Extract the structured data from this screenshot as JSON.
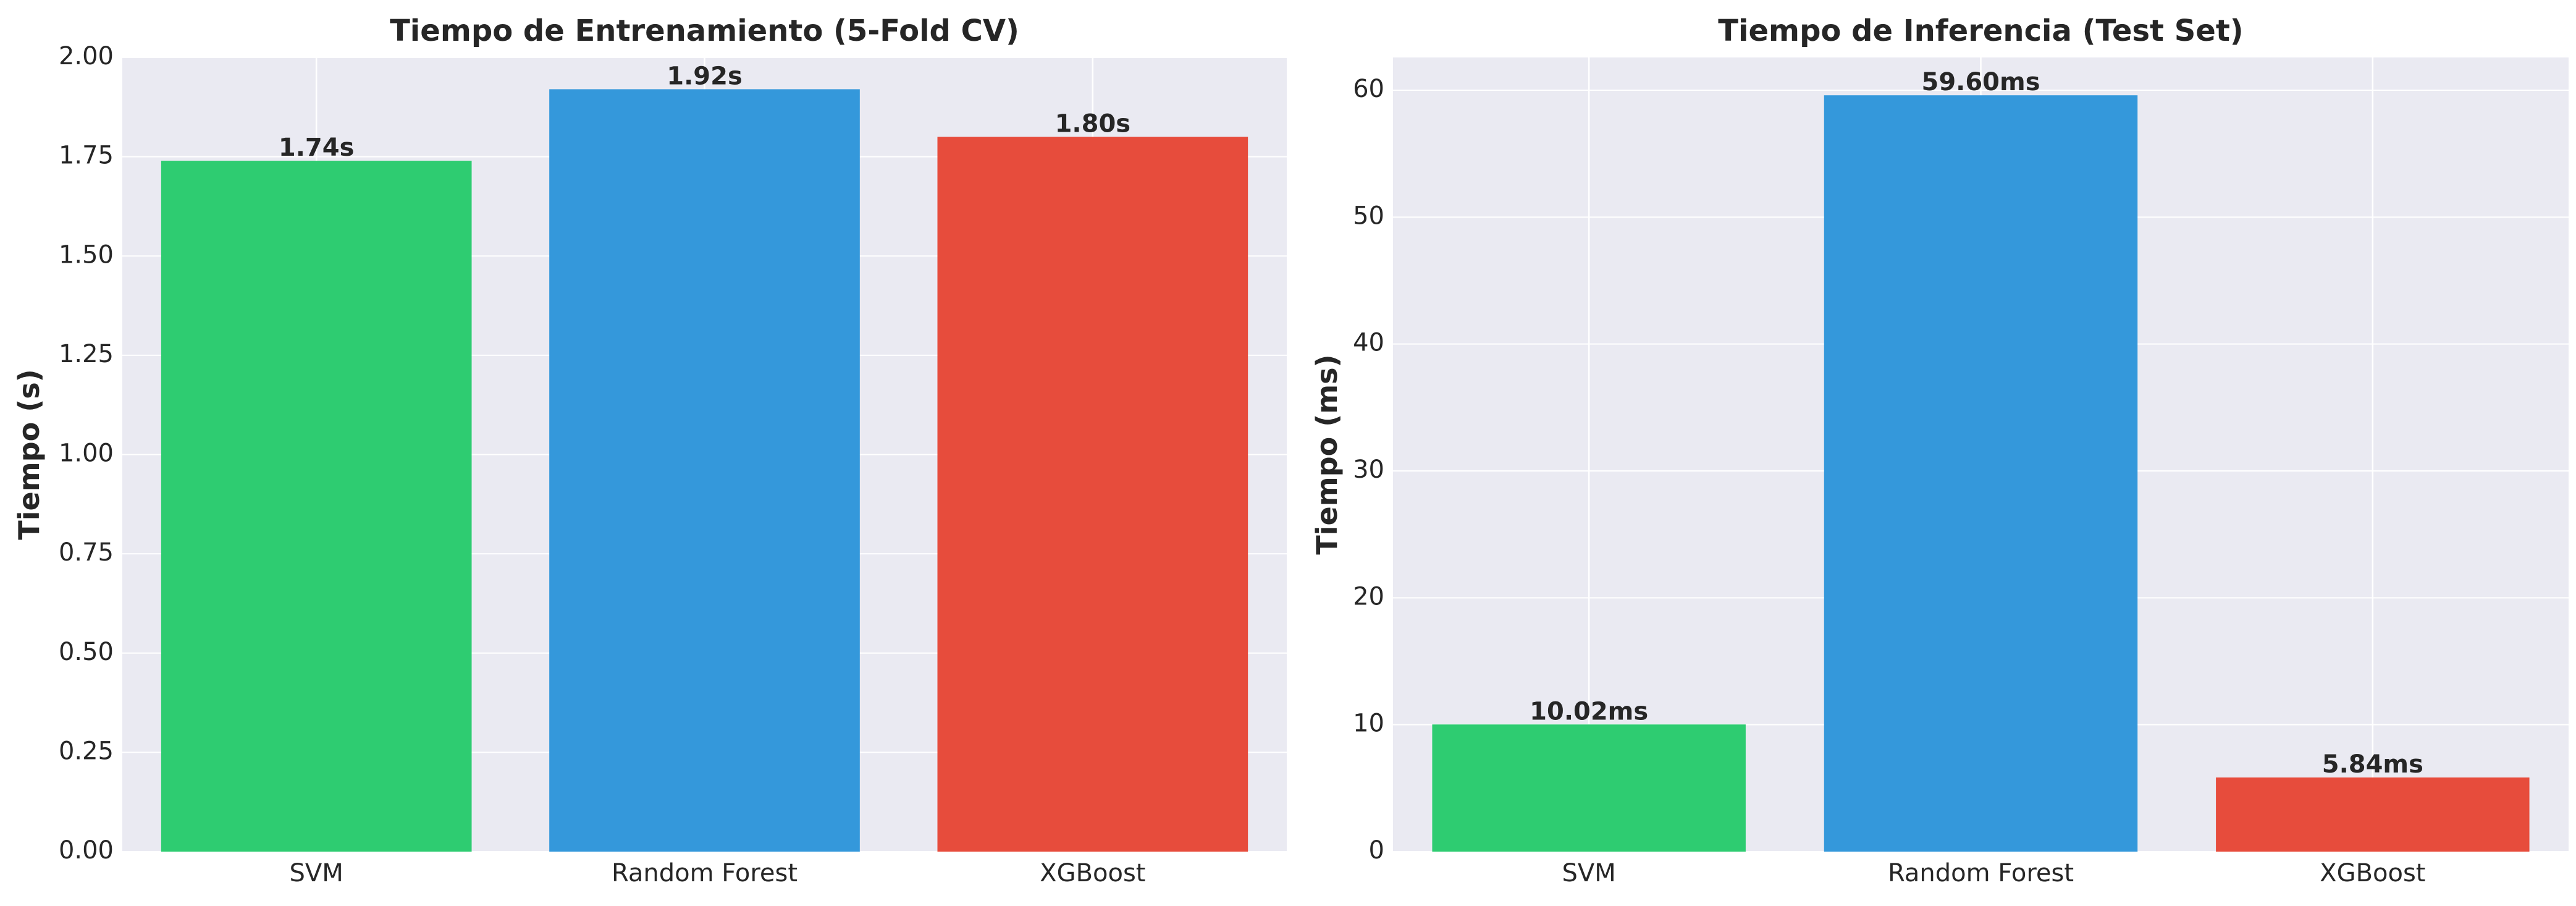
{
  "chart_data": [
    {
      "type": "bar",
      "title": "Tiempo de Entrenamiento (5-Fold CV)",
      "xlabel": "",
      "ylabel": "Tiempo (s)",
      "categories": [
        "SVM",
        "Random Forest",
        "XGBoost"
      ],
      "values": [
        1.74,
        1.92,
        1.8
      ],
      "data_labels": [
        "1.74s",
        "1.92s",
        "1.80s"
      ],
      "colors": [
        "#2ecc71",
        "#3498db",
        "#e74c3c"
      ],
      "ylim": [
        0,
        2.0
      ],
      "yticks": [
        0.0,
        0.25,
        0.5,
        0.75,
        1.0,
        1.25,
        1.5,
        1.75,
        2.0
      ],
      "ytick_labels": [
        "0.00",
        "0.25",
        "0.50",
        "0.75",
        "1.00",
        "1.25",
        "1.50",
        "1.75",
        "2.00"
      ],
      "grid": true,
      "background": "#eaeaf2"
    },
    {
      "type": "bar",
      "title": "Tiempo de Inferencia (Test Set)",
      "xlabel": "",
      "ylabel": "Tiempo (ms)",
      "categories": [
        "SVM",
        "Random Forest",
        "XGBoost"
      ],
      "values": [
        10.02,
        59.6,
        5.84
      ],
      "data_labels": [
        "10.02ms",
        "59.60ms",
        "5.84ms"
      ],
      "colors": [
        "#2ecc71",
        "#3498db",
        "#e74c3c"
      ],
      "ylim": [
        0,
        62.58
      ],
      "yticks": [
        0,
        10,
        20,
        30,
        40,
        50,
        60
      ],
      "ytick_labels": [
        "0",
        "10",
        "20",
        "30",
        "40",
        "50",
        "60"
      ],
      "grid": true,
      "background": "#eaeaf2"
    }
  ]
}
